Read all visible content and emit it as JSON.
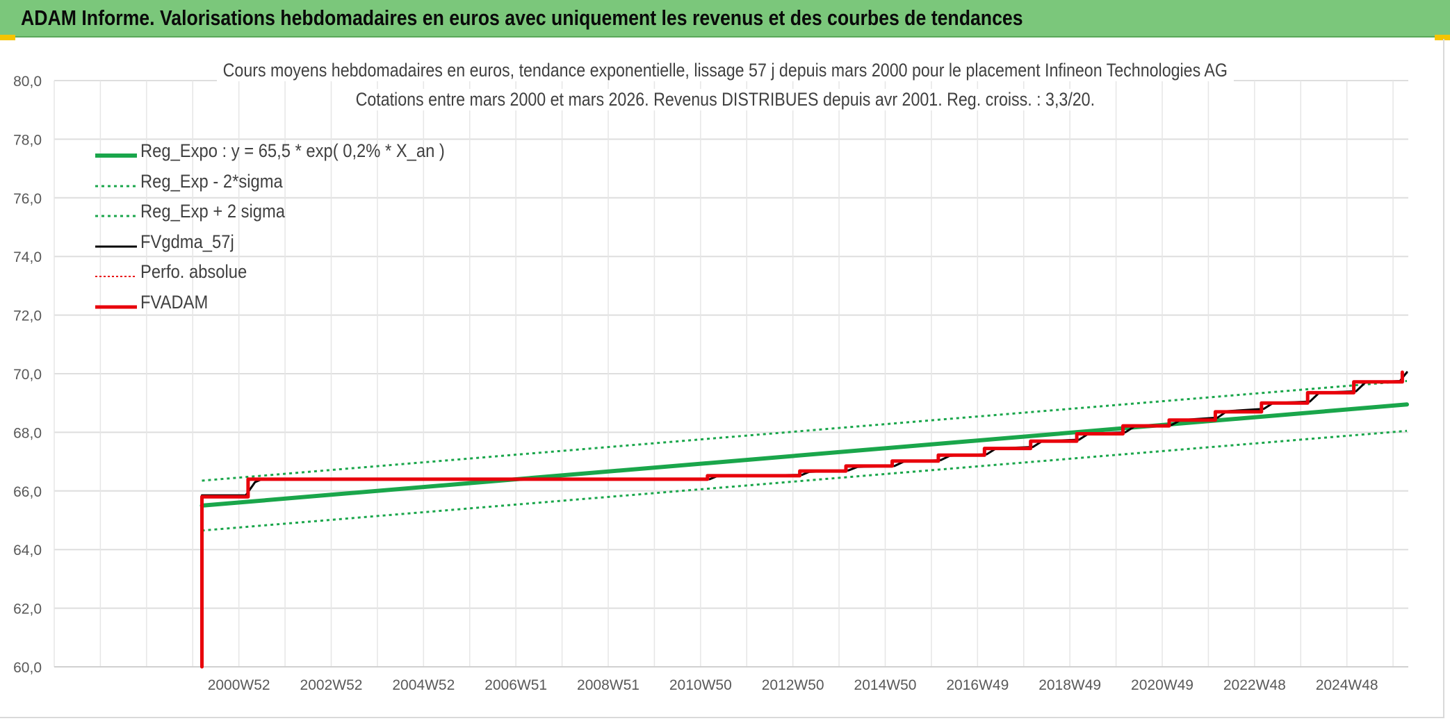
{
  "header": {
    "title": "ADAM Informe. Valorisations hebdomadaires en euros avec uniquement les revenus et des courbes de tendances"
  },
  "chart_data": {
    "type": "line",
    "title_line1": "Cours moyens hebdomadaires en euros, tendance exponentielle, lissage 57 j depuis mars 2000 pour le placement Infineon Technologies AG",
    "title_line2": "Cotations entre mars 2000 et mars 2026. Revenus DISTRIBUES depuis avr 2001. Reg. croiss. : 3,3/20.",
    "xlabel": "",
    "ylabel": "",
    "ylim": [
      60,
      80
    ],
    "yticks": [
      "60,0",
      "62,0",
      "64,0",
      "66,0",
      "68,0",
      "70,0",
      "72,0",
      "74,0",
      "76,0",
      "78,0",
      "80,0"
    ],
    "xlim": [
      1997.0,
      2026.33
    ],
    "xticks": [
      {
        "label": "2000W52",
        "x": 2001.0
      },
      {
        "label": "2002W52",
        "x": 2003.0
      },
      {
        "label": "2004W52",
        "x": 2005.0
      },
      {
        "label": "2006W51",
        "x": 2007.0
      },
      {
        "label": "2008W51",
        "x": 2009.0
      },
      {
        "label": "2010W50",
        "x": 2011.0
      },
      {
        "label": "2012W50",
        "x": 2013.0
      },
      {
        "label": "2014W50",
        "x": 2015.0
      },
      {
        "label": "2016W49",
        "x": 2017.0
      },
      {
        "label": "2018W49",
        "x": 2019.0
      },
      {
        "label": "2020W49",
        "x": 2021.0
      },
      {
        "label": "2022W48",
        "x": 2023.0
      },
      {
        "label": "2024W48",
        "x": 2025.0
      }
    ],
    "grid": true,
    "legend_position": "top-left",
    "series": [
      {
        "name": "Reg_Expo : y = 65,5 * exp( 0,2% *  X_an )",
        "color": "#1aa64b",
        "style": "solid",
        "width": 6,
        "points": [
          [
            2000.2,
            65.5
          ],
          [
            2026.3,
            68.95
          ]
        ]
      },
      {
        "name": "Reg_Exp - 2*sigma",
        "color": "#1aa64b",
        "style": "dotted",
        "width": 3,
        "points": [
          [
            2000.2,
            64.65
          ],
          [
            2026.3,
            68.05
          ]
        ]
      },
      {
        "name": "Reg_Exp + 2 sigma",
        "color": "#1aa64b",
        "style": "dotted",
        "width": 3,
        "points": [
          [
            2000.2,
            66.35
          ],
          [
            2026.3,
            69.75
          ]
        ]
      },
      {
        "name": "FVgdma_57j",
        "color": "#000000",
        "style": "solid",
        "width": 3,
        "points": [
          [
            2000.2,
            65.85
          ],
          [
            2001.15,
            65.85
          ],
          [
            2001.35,
            66.3
          ],
          [
            2001.5,
            66.4
          ],
          [
            2011.2,
            66.4
          ],
          [
            2011.35,
            66.5
          ],
          [
            2013.2,
            66.55
          ],
          [
            2013.35,
            66.65
          ],
          [
            2014.2,
            66.7
          ],
          [
            2014.4,
            66.82
          ],
          [
            2015.2,
            66.85
          ],
          [
            2015.4,
            67.0
          ],
          [
            2016.2,
            67.05
          ],
          [
            2016.4,
            67.2
          ],
          [
            2017.2,
            67.25
          ],
          [
            2017.4,
            67.45
          ],
          [
            2018.2,
            67.5
          ],
          [
            2018.4,
            67.7
          ],
          [
            2019.2,
            67.75
          ],
          [
            2019.4,
            67.95
          ],
          [
            2020.2,
            68.0
          ],
          [
            2020.4,
            68.2
          ],
          [
            2021.2,
            68.25
          ],
          [
            2021.4,
            68.42
          ],
          [
            2022.2,
            68.5
          ],
          [
            2022.4,
            68.72
          ],
          [
            2023.2,
            68.8
          ],
          [
            2023.4,
            69.0
          ],
          [
            2024.2,
            69.05
          ],
          [
            2024.4,
            69.35
          ],
          [
            2025.2,
            69.4
          ],
          [
            2025.4,
            69.7
          ],
          [
            2026.15,
            69.75
          ],
          [
            2026.3,
            70.05
          ]
        ]
      },
      {
        "name": "Perfo. absolue",
        "color": "#e8000b",
        "style": "dotted",
        "width": 2,
        "points": []
      },
      {
        "name": "FVADAM",
        "color": "#e8000b",
        "style": "solid",
        "width": 5,
        "points": [
          [
            2000.2,
            60.0
          ],
          [
            2000.2,
            65.8
          ],
          [
            2001.2,
            65.8
          ],
          [
            2001.2,
            66.4
          ],
          [
            2011.15,
            66.4
          ],
          [
            2011.15,
            66.52
          ],
          [
            2013.15,
            66.52
          ],
          [
            2013.15,
            66.68
          ],
          [
            2014.15,
            66.68
          ],
          [
            2014.15,
            66.85
          ],
          [
            2015.15,
            66.85
          ],
          [
            2015.15,
            67.02
          ],
          [
            2016.15,
            67.02
          ],
          [
            2016.15,
            67.22
          ],
          [
            2017.15,
            67.22
          ],
          [
            2017.15,
            67.45
          ],
          [
            2018.15,
            67.45
          ],
          [
            2018.15,
            67.7
          ],
          [
            2019.15,
            67.7
          ],
          [
            2019.15,
            67.95
          ],
          [
            2020.15,
            67.95
          ],
          [
            2020.15,
            68.22
          ],
          [
            2021.15,
            68.22
          ],
          [
            2021.15,
            68.42
          ],
          [
            2022.15,
            68.42
          ],
          [
            2022.15,
            68.7
          ],
          [
            2023.15,
            68.7
          ],
          [
            2023.15,
            69.0
          ],
          [
            2024.15,
            69.0
          ],
          [
            2024.15,
            69.35
          ],
          [
            2025.15,
            69.35
          ],
          [
            2025.15,
            69.72
          ],
          [
            2026.2,
            69.72
          ],
          [
            2026.2,
            70.05
          ]
        ]
      }
    ]
  }
}
